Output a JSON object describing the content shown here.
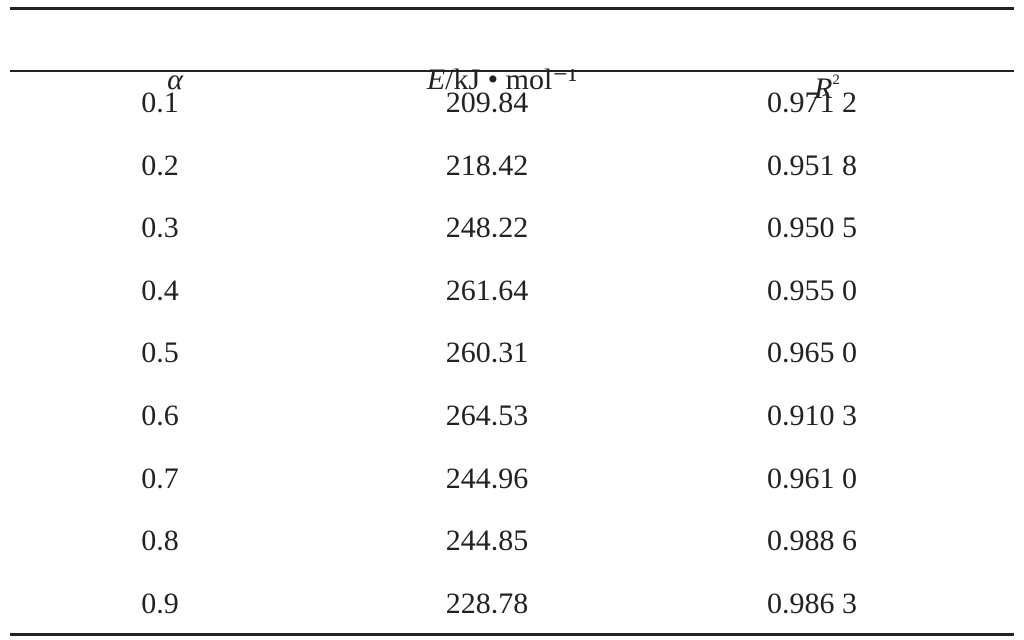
{
  "table": {
    "header": [
      {
        "symbol": "α"
      },
      {
        "symbol": "E",
        "unit": "/kJ • mol⁻¹"
      },
      {
        "symbol": "R",
        "superscript": "2"
      }
    ],
    "rows": [
      [
        "0.1",
        "209.84",
        "0.971 2"
      ],
      [
        "0.2",
        "218.42",
        "0.951 8"
      ],
      [
        "0.3",
        "248.22",
        "0.950 5"
      ],
      [
        "0.4",
        "261.64",
        "0.955 0"
      ],
      [
        "0.5",
        "260.31",
        "0.965 0"
      ],
      [
        "0.6",
        "264.53",
        "0.910 3"
      ],
      [
        "0.7",
        "244.96",
        "0.961 0"
      ],
      [
        "0.8",
        "244.85",
        "0.988 6"
      ],
      [
        "0.9",
        "228.78",
        "0.986 3"
      ]
    ]
  }
}
